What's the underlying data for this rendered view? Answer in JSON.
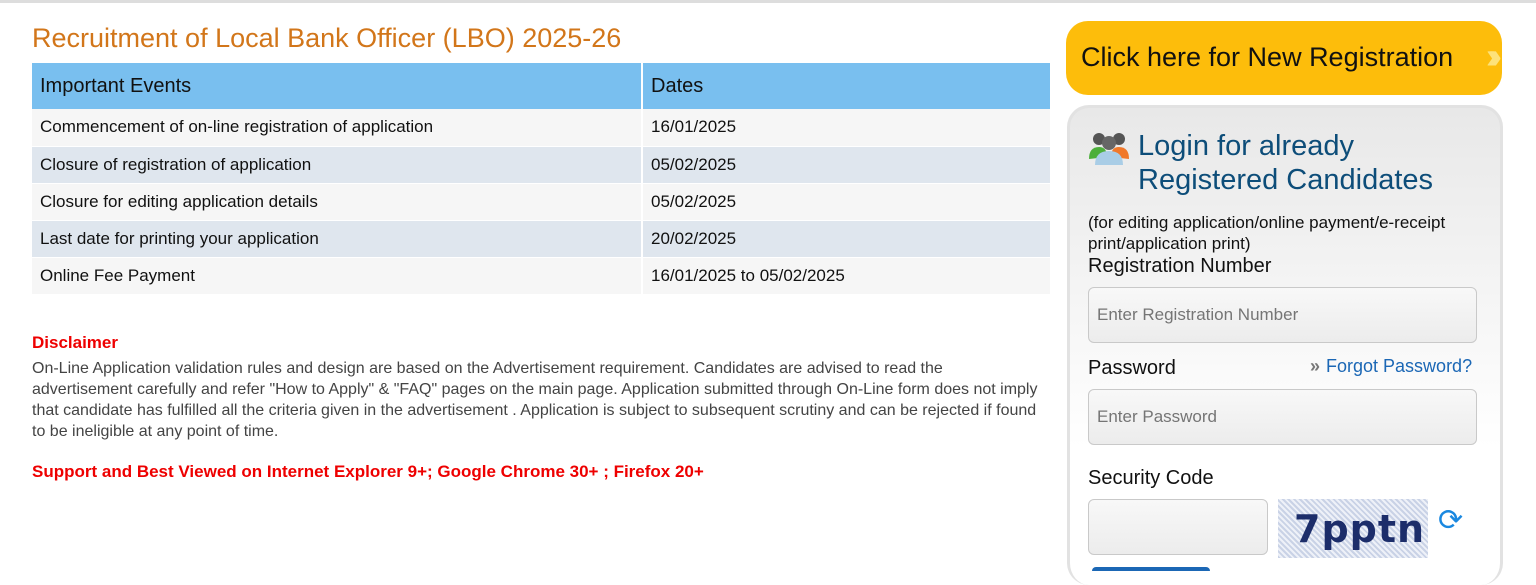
{
  "title": "Recruitment of Local Bank Officer (LBO) 2025-26",
  "table": {
    "headers": [
      "Important Events",
      "Dates"
    ],
    "rows": [
      [
        "Commencement of on-line registration of application",
        "16/01/2025"
      ],
      [
        "Closure of registration of application",
        "05/02/2025"
      ],
      [
        "Closure for editing application details",
        "05/02/2025"
      ],
      [
        "Last date for printing your application",
        "20/02/2025"
      ],
      [
        "Online Fee Payment",
        "16/01/2025 to 05/02/2025"
      ]
    ]
  },
  "disclaimer": {
    "heading": "Disclaimer",
    "text": "On-Line Application validation rules and design are based on the Advertisement requirement. Candidates are advised to read the advertisement carefully and refer \"How to Apply\" & \"FAQ\" pages on the main page. Application submitted through On-Line form does not imply that candidate has fulfilled all the criteria given in the advertisement . Application is subject to subsequent scrutiny and can be rejected if found to be ineligible at any point of time."
  },
  "support": "Support and Best Viewed on Internet Explorer 9+; Google Chrome 30+ ; Firefox 20+",
  "register_button": "Click here for New Registration",
  "login": {
    "heading_line1": "Login for already",
    "heading_line2": "Registered Candidates",
    "note": "(for editing application/online payment/e-receipt print/application print)",
    "reg_label": "Registration Number",
    "reg_placeholder": "Enter Registration Number",
    "password_label": "Password",
    "password_placeholder": "Enter Password",
    "forgot": "Forgot Password?",
    "security_label": "Security Code",
    "captcha": "7pptn"
  },
  "colors": {
    "accent": "#fdbd0b",
    "table_header": "#79bfef",
    "title": "#d2761a",
    "alert": "#ee0000"
  }
}
